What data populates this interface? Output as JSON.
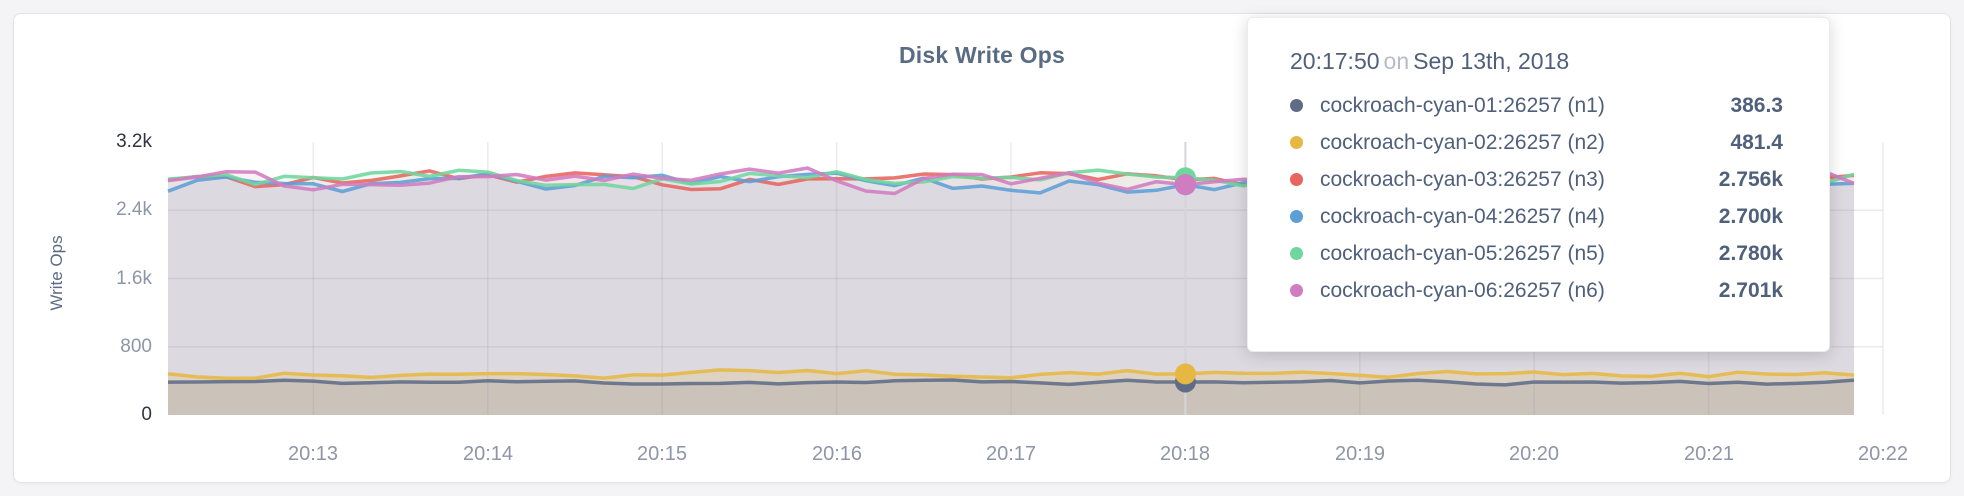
{
  "theme": {
    "background": "#f4f4f6",
    "card_background": "#ffffff",
    "card_border": "#e4e4e7",
    "title_color": "#5a6c84",
    "tick_muted_color": "#8d95a7",
    "tick_dark_color": "#2f3540",
    "grid_color": "#8989a0",
    "crosshair_color": "#d4d5da",
    "tooltip_text_color": "#50607a",
    "tooltip_muted_color": "#b7bcc4"
  },
  "chart_data": {
    "type": "line",
    "title": "Disk Write Ops",
    "ylabel": "Write Ops",
    "xlabel": "",
    "grid": true,
    "legend_position": "tooltip-only",
    "ylim": [
      0,
      3200
    ],
    "y_ticks": [
      {
        "value": 0,
        "label": "0",
        "emphasis": true
      },
      {
        "value": 800,
        "label": "800",
        "emphasis": false
      },
      {
        "value": 1600,
        "label": "1.6k",
        "emphasis": false
      },
      {
        "value": 2400,
        "label": "2.4k",
        "emphasis": false
      },
      {
        "value": 3200,
        "label": "3.2k",
        "emphasis": true
      }
    ],
    "x_ticks": [
      "20:13",
      "20:14",
      "20:15",
      "20:16",
      "20:17",
      "20:18",
      "20:19",
      "20:20",
      "20:21",
      "20:22"
    ],
    "x_start": "20:12:10",
    "x_end": "20:21:50",
    "sample_interval_seconds": 10,
    "hover": {
      "time": "20:17:50",
      "connector": "on",
      "date": "Sep 13th, 2018",
      "x_tick_label": "20:18"
    },
    "series": [
      {
        "id": "n1",
        "name": "cockroach-cyan-01:26257 (n1)",
        "color": "#5f6c87",
        "hover_display": "386.3",
        "hover_value": 386.3,
        "approx_base": 385,
        "approx_amplitude": 28,
        "approx_min": 345,
        "approx_max": 425,
        "seed": 11
      },
      {
        "id": "n2",
        "name": "cockroach-cyan-02:26257 (n2)",
        "color": "#e6b843",
        "hover_display": "481.4",
        "hover_value": 481.4,
        "approx_base": 492,
        "approx_amplitude": 48,
        "approx_min": 430,
        "approx_max": 570,
        "seed": 27
      },
      {
        "id": "n3",
        "name": "cockroach-cyan-03:26257 (n3)",
        "color": "#e8645f",
        "hover_display": "2.756k",
        "hover_value": 2756,
        "approx_base": 2745,
        "approx_amplitude": 105,
        "approx_min": 2580,
        "approx_max": 2950,
        "seed": 33
      },
      {
        "id": "n4",
        "name": "cockroach-cyan-04:26257 (n4)",
        "color": "#5c9fd6",
        "hover_display": "2.700k",
        "hover_value": 2700,
        "approx_base": 2715,
        "approx_amplitude": 110,
        "approx_min": 2560,
        "approx_max": 2930,
        "seed": 45
      },
      {
        "id": "n5",
        "name": "cockroach-cyan-05:26257 (n5)",
        "color": "#6fd69d",
        "hover_display": "2.780k",
        "hover_value": 2780,
        "approx_base": 2765,
        "approx_amplitude": 100,
        "approx_min": 2610,
        "approx_max": 2960,
        "seed": 58
      },
      {
        "id": "n6",
        "name": "cockroach-cyan-06:26257 (n6)",
        "color": "#d07cc0",
        "hover_display": "2.701k",
        "hover_value": 2701,
        "approx_base": 2735,
        "approx_amplitude": 130,
        "approx_min": 2545,
        "approx_max": 2980,
        "seed": 61
      }
    ]
  }
}
